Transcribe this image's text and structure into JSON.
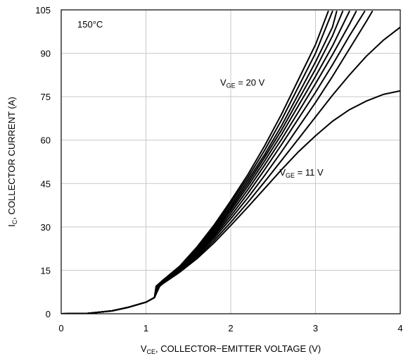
{
  "chart_data": {
    "type": "line",
    "title": "",
    "annotation_temp": "150°C",
    "xlabel": {
      "main": "V",
      "sub": "CE",
      "rest": ", COLLECTOR−EMITTER VOLTAGE (V)"
    },
    "ylabel": {
      "main": "I",
      "sub": "C",
      "rest": ", COLLECTOR CURRENT (A)"
    },
    "xlim": [
      0,
      4
    ],
    "ylim": [
      0,
      105
    ],
    "xticks": [
      0,
      1,
      2,
      3,
      4
    ],
    "yticks": [
      0,
      15,
      30,
      45,
      60,
      75,
      90,
      105
    ],
    "grid": true,
    "legend_labels": [
      {
        "main": "V",
        "sub": "GE",
        "rest": " = 20 V",
        "series_index": 0,
        "x": 2.0,
        "y": 80
      },
      {
        "main": "V",
        "sub": "GE",
        "rest": " = 11 V",
        "series_index": 9,
        "x": 2.7,
        "y": 49
      }
    ],
    "series": [
      {
        "values": [
          [
            0,
            0
          ],
          [
            0.3,
            0.1
          ],
          [
            0.6,
            1
          ],
          [
            0.8,
            2.3
          ],
          [
            1.0,
            4
          ],
          [
            1.1,
            5.6
          ],
          [
            1.12,
            9.5
          ],
          [
            1.2,
            11.6
          ],
          [
            1.4,
            16.5
          ],
          [
            1.6,
            23
          ],
          [
            1.8,
            30.5
          ],
          [
            2.0,
            39
          ],
          [
            2.2,
            48
          ],
          [
            2.4,
            58
          ],
          [
            2.6,
            69
          ],
          [
            2.8,
            81
          ],
          [
            3.0,
            93
          ],
          [
            3.15,
            104.5
          ]
        ]
      },
      {
        "values": [
          [
            0,
            0
          ],
          [
            0.3,
            0.1
          ],
          [
            0.6,
            1
          ],
          [
            0.8,
            2.3
          ],
          [
            1.0,
            4
          ],
          [
            1.1,
            5.6
          ],
          [
            1.12,
            9.5
          ],
          [
            1.2,
            11.6
          ],
          [
            1.4,
            16.2
          ],
          [
            1.6,
            22.5
          ],
          [
            1.8,
            30
          ],
          [
            2.0,
            38.2
          ],
          [
            2.2,
            47
          ],
          [
            2.4,
            56.5
          ],
          [
            2.6,
            67
          ],
          [
            2.8,
            78.5
          ],
          [
            3.0,
            90
          ],
          [
            3.2,
            104.5
          ]
        ]
      },
      {
        "values": [
          [
            0,
            0
          ],
          [
            0.3,
            0.1
          ],
          [
            0.6,
            1
          ],
          [
            0.8,
            2.3
          ],
          [
            1.0,
            4
          ],
          [
            1.1,
            5.6
          ],
          [
            1.12,
            9.5
          ],
          [
            1.2,
            11.4
          ],
          [
            1.4,
            16
          ],
          [
            1.6,
            22
          ],
          [
            1.8,
            29.3
          ],
          [
            2.0,
            37.3
          ],
          [
            2.2,
            46
          ],
          [
            2.4,
            55
          ],
          [
            2.6,
            65
          ],
          [
            2.8,
            76
          ],
          [
            3.0,
            87
          ],
          [
            3.2,
            99
          ],
          [
            3.25,
            104.5
          ]
        ]
      },
      {
        "values": [
          [
            0,
            0
          ],
          [
            0.3,
            0.1
          ],
          [
            0.6,
            1
          ],
          [
            0.8,
            2.3
          ],
          [
            1.0,
            4
          ],
          [
            1.1,
            5.6
          ],
          [
            1.13,
            9.5
          ],
          [
            1.2,
            11.3
          ],
          [
            1.4,
            15.8
          ],
          [
            1.6,
            21.6
          ],
          [
            1.8,
            28.6
          ],
          [
            2.0,
            36.5
          ],
          [
            2.2,
            45
          ],
          [
            2.4,
            54
          ],
          [
            2.6,
            63.5
          ],
          [
            2.8,
            74
          ],
          [
            3.0,
            84.5
          ],
          [
            3.2,
            96
          ],
          [
            3.32,
            104.5
          ]
        ]
      },
      {
        "values": [
          [
            0,
            0
          ],
          [
            0.3,
            0.1
          ],
          [
            0.6,
            1
          ],
          [
            0.8,
            2.3
          ],
          [
            1.0,
            4
          ],
          [
            1.1,
            5.6
          ],
          [
            1.13,
            9.5
          ],
          [
            1.2,
            11.2
          ],
          [
            1.4,
            15.6
          ],
          [
            1.6,
            21.2
          ],
          [
            1.8,
            28
          ],
          [
            2.0,
            35.7
          ],
          [
            2.2,
            44
          ],
          [
            2.4,
            52.8
          ],
          [
            2.6,
            62
          ],
          [
            2.8,
            72
          ],
          [
            3.0,
            82
          ],
          [
            3.2,
            92.5
          ],
          [
            3.4,
            104.5
          ]
        ]
      },
      {
        "values": [
          [
            0,
            0
          ],
          [
            0.3,
            0.1
          ],
          [
            0.6,
            1
          ],
          [
            0.8,
            2.3
          ],
          [
            1.0,
            4
          ],
          [
            1.1,
            5.6
          ],
          [
            1.14,
            9.5
          ],
          [
            1.2,
            11.1
          ],
          [
            1.4,
            15.4
          ],
          [
            1.6,
            20.8
          ],
          [
            1.8,
            27.3
          ],
          [
            2.0,
            34.8
          ],
          [
            2.2,
            42.8
          ],
          [
            2.4,
            51.4
          ],
          [
            2.6,
            60.3
          ],
          [
            2.8,
            69.8
          ],
          [
            3.0,
            79.5
          ],
          [
            3.2,
            89.5
          ],
          [
            3.4,
            100
          ],
          [
            3.48,
            104.5
          ]
        ]
      },
      {
        "values": [
          [
            0,
            0
          ],
          [
            0.3,
            0.1
          ],
          [
            0.6,
            1
          ],
          [
            0.8,
            2.3
          ],
          [
            1.0,
            4
          ],
          [
            1.1,
            5.6
          ],
          [
            1.14,
            9.4
          ],
          [
            1.2,
            11
          ],
          [
            1.4,
            15.2
          ],
          [
            1.6,
            20.4
          ],
          [
            1.8,
            26.7
          ],
          [
            2.0,
            33.8
          ],
          [
            2.2,
            41.5
          ],
          [
            2.4,
            49.8
          ],
          [
            2.6,
            58.5
          ],
          [
            2.8,
            67.5
          ],
          [
            3.0,
            76.5
          ],
          [
            3.2,
            86
          ],
          [
            3.4,
            96
          ],
          [
            3.58,
            104.5
          ]
        ]
      },
      {
        "values": [
          [
            0,
            0
          ],
          [
            0.3,
            0.1
          ],
          [
            0.6,
            1
          ],
          [
            0.8,
            2.3
          ],
          [
            1.0,
            4
          ],
          [
            1.1,
            5.6
          ],
          [
            1.15,
            9.4
          ],
          [
            1.2,
            10.8
          ],
          [
            1.4,
            15
          ],
          [
            1.6,
            20
          ],
          [
            1.8,
            26
          ],
          [
            2.0,
            32.8
          ],
          [
            2.2,
            40
          ],
          [
            2.4,
            47.8
          ],
          [
            2.6,
            56
          ],
          [
            2.8,
            64.5
          ],
          [
            3.0,
            73
          ],
          [
            3.2,
            82
          ],
          [
            3.4,
            91.5
          ],
          [
            3.6,
            101
          ],
          [
            3.67,
            104.5
          ]
        ]
      },
      {
        "values": [
          [
            0,
            0
          ],
          [
            0.3,
            0.1
          ],
          [
            0.6,
            1
          ],
          [
            0.8,
            2.3
          ],
          [
            1.0,
            4
          ],
          [
            1.1,
            5.6
          ],
          [
            1.15,
            9.4
          ],
          [
            1.2,
            10.6
          ],
          [
            1.4,
            14.7
          ],
          [
            1.6,
            19.5
          ],
          [
            1.8,
            25.2
          ],
          [
            2.0,
            31.6
          ],
          [
            2.2,
            38.4
          ],
          [
            2.4,
            45.6
          ],
          [
            2.6,
            53
          ],
          [
            2.8,
            60.5
          ],
          [
            3.0,
            68
          ],
          [
            3.2,
            75.5
          ],
          [
            3.4,
            82.5
          ],
          [
            3.6,
            89
          ],
          [
            3.8,
            94.5
          ],
          [
            4.0,
            99
          ]
        ]
      },
      {
        "values": [
          [
            0,
            0
          ],
          [
            0.3,
            0.1
          ],
          [
            0.6,
            1
          ],
          [
            0.8,
            2.3
          ],
          [
            1.0,
            4
          ],
          [
            1.1,
            5.6
          ],
          [
            1.16,
            9.4
          ],
          [
            1.2,
            10.4
          ],
          [
            1.4,
            14.4
          ],
          [
            1.6,
            19
          ],
          [
            1.8,
            24.4
          ],
          [
            2.0,
            30.5
          ],
          [
            2.2,
            36.8
          ],
          [
            2.4,
            43.3
          ],
          [
            2.6,
            49.8
          ],
          [
            2.8,
            56
          ],
          [
            3.0,
            61.5
          ],
          [
            3.2,
            66.5
          ],
          [
            3.4,
            70.5
          ],
          [
            3.6,
            73.5
          ],
          [
            3.8,
            75.8
          ],
          [
            4.0,
            77
          ]
        ]
      }
    ]
  }
}
